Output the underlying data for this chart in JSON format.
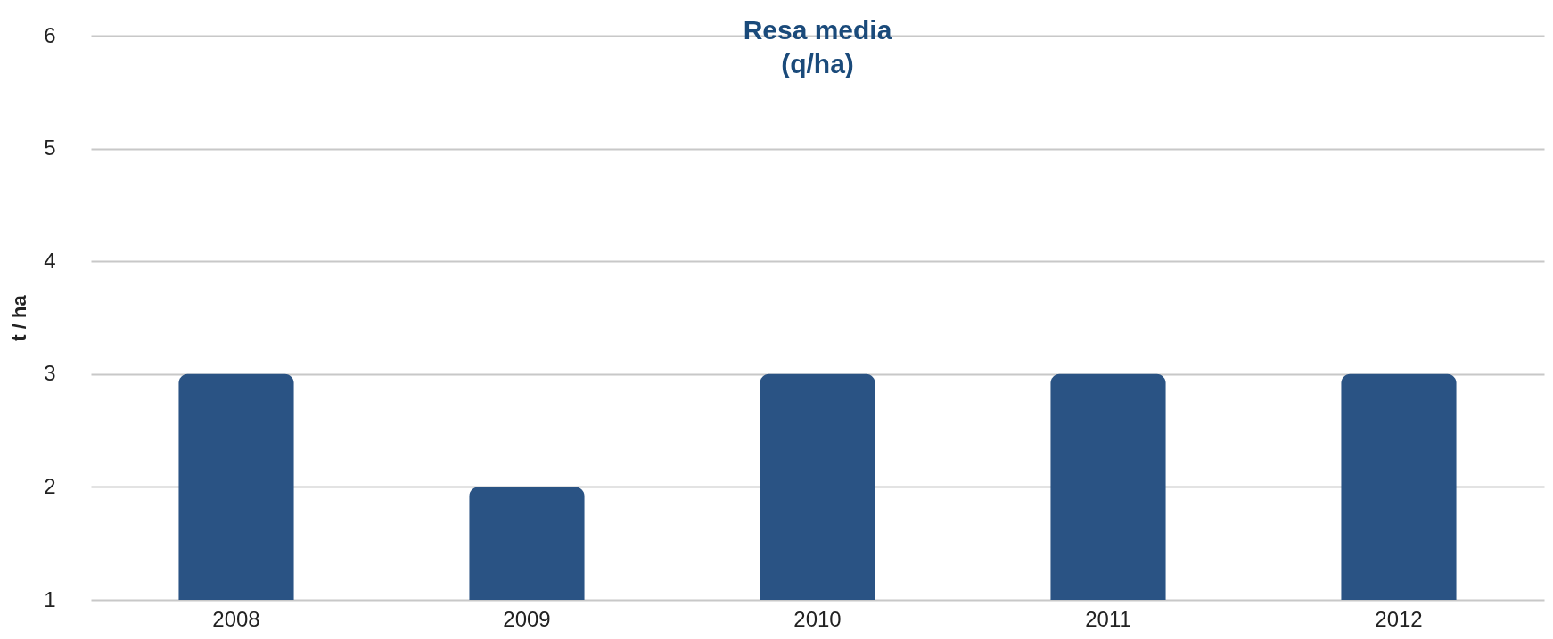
{
  "chart_data": {
    "type": "bar",
    "title": "Resa media\n(q/ha)",
    "ylabel": "t / ha",
    "categories": [
      "2008",
      "2009",
      "2010",
      "2011",
      "2012"
    ],
    "values": [
      3,
      2,
      3,
      3,
      3
    ],
    "color": "#2a5384",
    "ylim": [
      1,
      6
    ],
    "yticks": [
      1,
      2,
      3,
      4,
      5,
      6
    ],
    "grid": "y"
  }
}
